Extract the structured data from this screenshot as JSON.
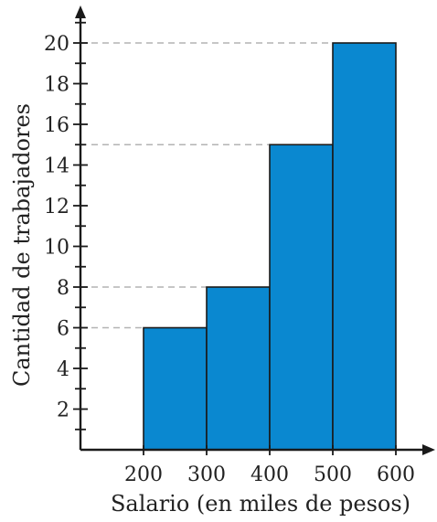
{
  "colors": {
    "bar_fill": "#0A88D0",
    "bar_stroke": "#1a1a1a",
    "axis": "#1a1a1a",
    "reference_line": "#b3b3b3",
    "text": "#222222"
  },
  "chart_data": {
    "type": "bar",
    "title": "",
    "xlabel": "Salario (en miles de pesos)",
    "ylabel": "Cantidad de trabajadores",
    "bins": [
      {
        "from": 200,
        "to": 300,
        "value": 6
      },
      {
        "from": 300,
        "to": 400,
        "value": 8
      },
      {
        "from": 400,
        "to": 500,
        "value": 15
      },
      {
        "from": 500,
        "to": 600,
        "value": 20
      }
    ],
    "x_ticks": [
      "200",
      "300",
      "400",
      "500",
      "600"
    ],
    "y_ticks": [
      "2",
      "4",
      "6",
      "8",
      "10",
      "12",
      "14",
      "16",
      "18",
      "20"
    ],
    "xlim": [
      100,
      620
    ],
    "ylim": [
      0,
      20
    ],
    "reference_lines": [
      6,
      8,
      15,
      20
    ],
    "grid": false,
    "legend": "none"
  }
}
